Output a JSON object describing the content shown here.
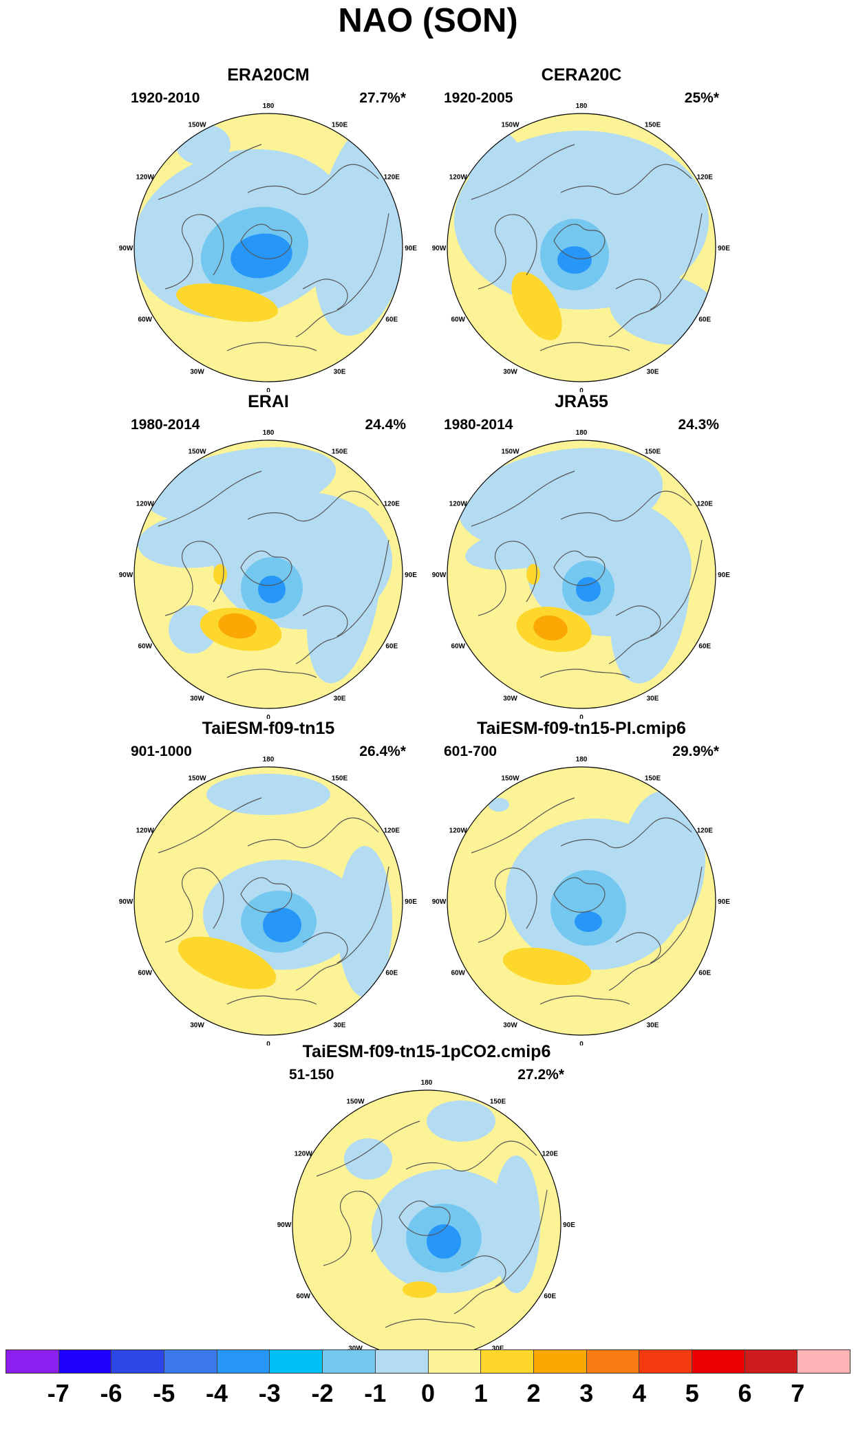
{
  "title": "NAO (SON)",
  "lon_labels": [
    "180",
    "150E",
    "120E",
    "90E",
    "60E",
    "30E",
    "0",
    "30W",
    "60W",
    "90W",
    "120W",
    "150W"
  ],
  "panels": [
    {
      "title": "ERA20CM",
      "period": "1920-2010",
      "variance": "27.7%*"
    },
    {
      "title": "CERA20C",
      "period": "1920-2005",
      "variance": "25%*"
    },
    {
      "title": "ERAI",
      "period": "1980-2014",
      "variance": "24.4%"
    },
    {
      "title": "JRA55",
      "period": "1980-2014",
      "variance": "24.3%"
    },
    {
      "title": "TaiESM-f09-tn15",
      "period": "901-1000",
      "variance": "26.4%*"
    },
    {
      "title": "TaiESM-f09-tn15-PI.cmip6",
      "period": "601-700",
      "variance": "29.9%*"
    },
    {
      "title": "TaiESM-f09-tn15-1pCO2.cmip6",
      "period": "51-150",
      "variance": "27.2%*"
    }
  ],
  "colorbar": {
    "colors": [
      "#8c1eef",
      "#1e00ff",
      "#2c46e8",
      "#3a78ec",
      "#2696f9",
      "#00c0f8",
      "#74c8f0",
      "#b3dcf3",
      "#fbf396",
      "#fdd72b",
      "#fba805",
      "#f87e14",
      "#f83a10",
      "#ea0000",
      "#ce1c1e",
      "#fbb3b5"
    ],
    "labels": [
      "-7",
      "-6",
      "-5",
      "-4",
      "-3",
      "-2",
      "-1",
      "0",
      "1",
      "2",
      "3",
      "4",
      "5",
      "6",
      "7"
    ]
  }
}
